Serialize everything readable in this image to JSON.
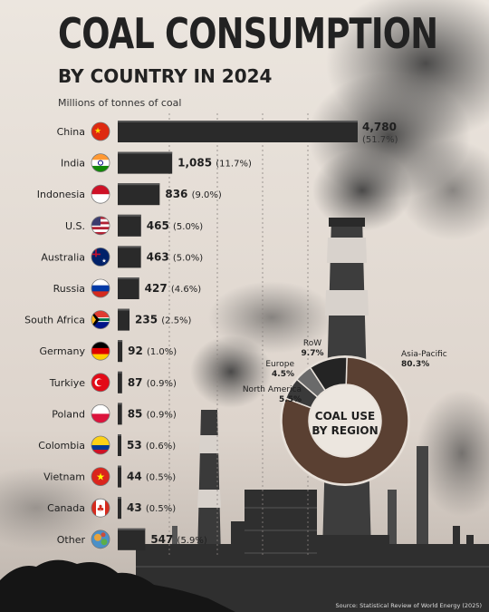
{
  "chart_data": [
    {
      "type": "bar",
      "orientation": "horizontal",
      "title": "COAL CONSUMPTION",
      "subtitle": "BY COUNTRY IN 2024",
      "xlabel": "Millions of tonnes of coal",
      "unit": "Mt",
      "categories": [
        "China",
        "India",
        "Indonesia",
        "U.S.",
        "Australia",
        "Russia",
        "South Africa",
        "Germany",
        "Turkiye",
        "Poland",
        "Colombia",
        "Vietnam",
        "Canada",
        "Other"
      ],
      "values": [
        4780,
        1085,
        836,
        465,
        463,
        427,
        235,
        92,
        87,
        85,
        53,
        44,
        43,
        547
      ],
      "shares": [
        "51.7%",
        "11.7%",
        "9.0%",
        "5.0%",
        "5.0%",
        "4.6%",
        "2.5%",
        "1.0%",
        "0.9%",
        "0.9%",
        "0.6%",
        "0.5%",
        "0.5%",
        "5.9%"
      ],
      "value_labels": [
        "4,780",
        "1,085",
        "836",
        "465",
        "463",
        "427",
        "235",
        "92",
        "87",
        "85",
        "53",
        "44",
        "43",
        "547"
      ],
      "flag_icons": [
        "flag-cn-icon",
        "flag-in-icon",
        "flag-id-icon",
        "flag-us-icon",
        "flag-au-icon",
        "flag-ru-icon",
        "flag-za-icon",
        "flag-de-icon",
        "flag-tr-icon",
        "flag-pl-icon",
        "flag-co-icon",
        "flag-vn-icon",
        "flag-ca-icon",
        "globe-icon"
      ],
      "bar_color": "#2a2a2a"
    },
    {
      "type": "pie",
      "style": "donut",
      "title": "COAL USE BY REGION",
      "center_label_line1": "COAL USE",
      "center_label_line2": "BY REGION",
      "categories": [
        "Asia-Pacific",
        "North America",
        "Europe",
        "RoW"
      ],
      "values": [
        80.3,
        5.5,
        4.5,
        9.7
      ],
      "value_labels": [
        "80.3%",
        "5.5%",
        "4.5%",
        "9.7%"
      ],
      "colors": [
        "#5a4032",
        "#3a3a3a",
        "#6a6a6a",
        "#242424"
      ]
    }
  ],
  "source": "Source: Statistical Review of World Energy (2025)"
}
